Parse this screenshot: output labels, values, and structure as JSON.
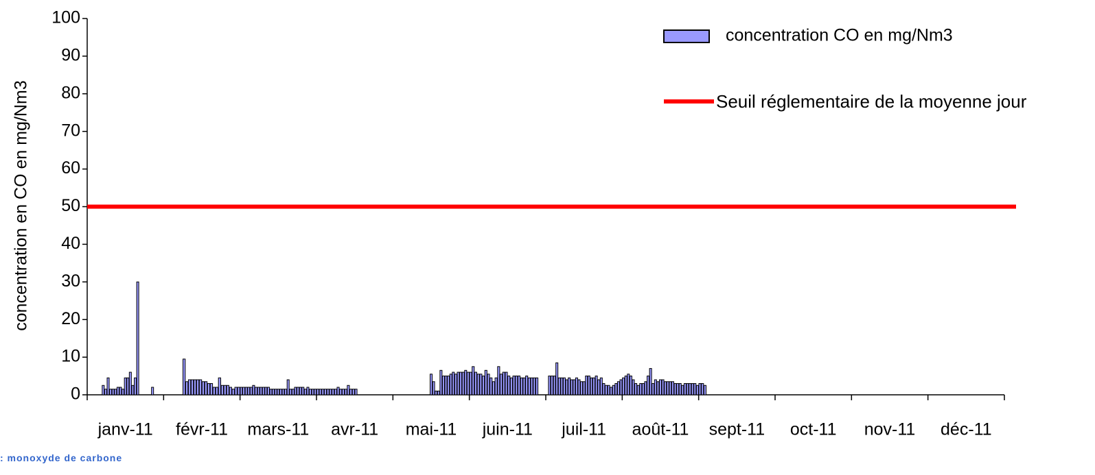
{
  "chart_data": {
    "type": "bar",
    "ylabel": "concentration en CO en mg/Nm3",
    "caption": ": monoxyde de carbone",
    "categories": [
      "janv-11",
      "févr-11",
      "mars-11",
      "avr-11",
      "mai-11",
      "juin-11",
      "juil-11",
      "août-11",
      "sept-11",
      "oct-11",
      "nov-11",
      "déc-11"
    ],
    "ylim": [
      0,
      100
    ],
    "yticks": [
      0,
      10,
      20,
      30,
      40,
      50,
      60,
      70,
      80,
      90,
      100
    ],
    "series": [
      {
        "name": "concentration CO en  mg/Nm3",
        "color": "#9999ff",
        "values": [
          [
            null,
            null,
            null,
            null,
            null,
            null,
            2.5,
            1.5,
            4.5,
            1.5,
            1.5,
            1.5,
            2,
            2,
            1.5,
            4.5,
            4.5,
            6,
            2.5,
            4.5,
            30,
            null,
            null,
            null,
            null,
            null,
            2,
            null,
            null,
            null,
            null
          ],
          [
            null,
            null,
            null,
            null,
            null,
            null,
            null,
            9.5,
            3.5,
            4,
            4,
            4,
            4,
            4,
            3.5,
            3.5,
            3,
            3,
            2,
            2,
            4.5,
            2.5,
            2.5,
            2.5,
            2,
            1.5,
            2,
            2
          ],
          [
            2,
            2,
            2,
            2,
            2,
            2.5,
            2,
            2,
            2,
            2,
            2,
            2,
            1.5,
            1.5,
            1.5,
            1.5,
            1.5,
            1.5,
            1.5,
            4,
            1.5,
            1.5,
            2,
            2,
            2,
            2,
            1.5,
            2,
            1.5,
            1.5,
            1.5
          ],
          [
            1.5,
            1.5,
            1.5,
            1.5,
            1.5,
            1.5,
            1.5,
            1.5,
            2,
            1.5,
            1.5,
            1.5,
            2.5,
            1.5,
            1.5,
            1.5,
            null,
            null,
            null,
            null,
            null,
            null,
            null,
            null,
            null,
            null,
            null,
            null,
            null,
            null
          ],
          [
            null,
            null,
            null,
            null,
            null,
            null,
            null,
            null,
            null,
            null,
            null,
            null,
            null,
            null,
            null,
            5.5,
            3.5,
            1,
            1,
            6.5,
            5,
            5,
            5,
            5.5,
            6,
            5.5,
            6,
            6,
            6,
            6.5,
            6
          ],
          [
            6,
            7.5,
            6,
            5.5,
            5.5,
            5,
            6.5,
            5.5,
            4.5,
            3.5,
            4.5,
            7.5,
            5.5,
            6,
            6,
            5,
            4.5,
            5,
            5,
            5,
            4.5,
            4.5,
            5,
            4.5,
            4.5,
            4.5,
            4.5,
            null,
            null,
            null
          ],
          [
            null,
            5,
            5,
            5,
            8.5,
            4.5,
            4.5,
            4.5,
            4,
            4.5,
            4,
            4,
            4.5,
            4,
            3.5,
            3.5,
            5,
            5,
            4.5,
            4.5,
            5,
            4,
            4.5,
            3,
            2.5,
            2.5,
            2,
            2.5,
            3,
            3.5,
            4
          ],
          [
            4.5,
            5,
            5.5,
            5,
            4,
            3,
            2.5,
            3,
            3,
            3.5,
            5,
            7,
            3,
            4,
            3.5,
            4,
            4,
            3.5,
            3.5,
            3.5,
            3.5,
            3,
            3,
            3,
            2.5,
            3,
            3,
            3,
            3,
            3,
            2.5
          ],
          [
            3,
            3,
            2.5,
            null,
            null,
            null,
            null,
            null,
            null,
            null,
            null,
            null,
            null,
            null,
            null,
            null,
            null,
            null,
            null,
            null,
            null,
            null,
            null,
            null,
            null,
            null,
            null,
            null,
            null,
            null
          ],
          [
            null,
            null,
            null,
            null,
            null,
            null,
            null,
            null,
            null,
            null,
            null,
            null,
            null,
            null,
            null,
            null,
            null,
            null,
            null,
            null,
            null,
            null,
            null,
            null,
            null,
            null,
            null,
            null,
            null,
            null,
            null
          ],
          [
            null,
            null,
            null,
            null,
            null,
            null,
            null,
            null,
            null,
            null,
            null,
            null,
            null,
            null,
            null,
            null,
            null,
            null,
            null,
            null,
            null,
            null,
            null,
            null,
            null,
            null,
            null,
            null,
            null,
            null
          ],
          [
            null,
            null,
            null,
            null,
            null,
            null,
            null,
            null,
            null,
            null,
            null,
            null,
            null,
            null,
            null,
            null,
            null,
            null,
            null,
            null,
            null,
            null,
            null,
            null,
            null,
            null,
            null,
            null,
            null,
            null,
            null
          ]
        ]
      },
      {
        "name": "Seuil réglementaire de la moyenne jour",
        "color": "#ff0000",
        "type": "line",
        "value": 50
      }
    ]
  }
}
